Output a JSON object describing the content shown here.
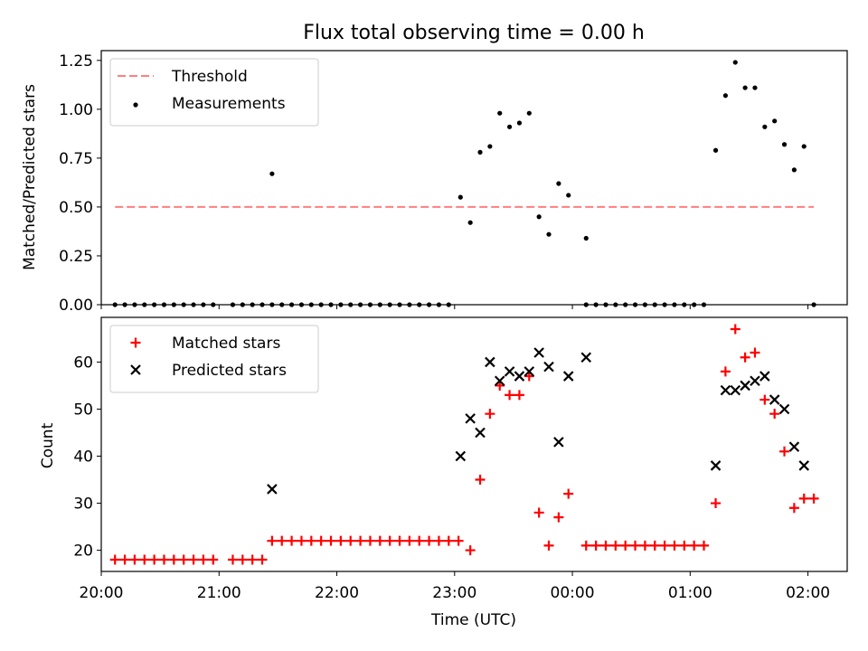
{
  "chart_data": [
    {
      "type": "scatter",
      "title": "Flux total observing time = 0.00 h",
      "xlabel": "",
      "ylabel": "Matched/Predicted stars",
      "xlim": [
        "20:00",
        "02:20"
      ],
      "ylim": [
        0,
        1.3
      ],
      "x_ticks": [
        "20:00",
        "21:00",
        "22:00",
        "23:00",
        "00:00",
        "01:00",
        "02:00"
      ],
      "y_ticks": [
        "0.00",
        "0.25",
        "0.50",
        "0.75",
        "1.00",
        "1.25"
      ],
      "legend_position": "top-left",
      "threshold": {
        "name": "Threshold",
        "value": 0.5,
        "x_range": [
          "20:07",
          "02:03"
        ],
        "style": "dashed",
        "color": "#ff7f7f"
      },
      "series": [
        {
          "name": "Measurements",
          "marker": "dot",
          "color": "#000000",
          "points": [
            [
              "20:07",
              0
            ],
            [
              "20:12",
              0
            ],
            [
              "20:17",
              0
            ],
            [
              "20:22",
              0
            ],
            [
              "20:27",
              0
            ],
            [
              "20:32",
              0
            ],
            [
              "20:37",
              0
            ],
            [
              "20:42",
              0
            ],
            [
              "20:47",
              0
            ],
            [
              "20:52",
              0
            ],
            [
              "20:57",
              0
            ],
            [
              "21:07",
              0
            ],
            [
              "21:12",
              0
            ],
            [
              "21:17",
              0
            ],
            [
              "21:22",
              0
            ],
            [
              "21:27",
              0
            ],
            [
              "21:27",
              0.67
            ],
            [
              "21:32",
              0
            ],
            [
              "21:37",
              0
            ],
            [
              "21:42",
              0
            ],
            [
              "21:47",
              0
            ],
            [
              "21:52",
              0
            ],
            [
              "21:57",
              0
            ],
            [
              "22:02",
              0
            ],
            [
              "22:07",
              0
            ],
            [
              "22:12",
              0
            ],
            [
              "22:17",
              0
            ],
            [
              "22:22",
              0
            ],
            [
              "22:27",
              0
            ],
            [
              "22:32",
              0
            ],
            [
              "22:37",
              0
            ],
            [
              "22:42",
              0
            ],
            [
              "22:47",
              0
            ],
            [
              "22:52",
              0
            ],
            [
              "22:57",
              0
            ],
            [
              "23:03",
              0.55
            ],
            [
              "23:08",
              0.42
            ],
            [
              "23:13",
              0.78
            ],
            [
              "23:18",
              0.81
            ],
            [
              "23:23",
              0.98
            ],
            [
              "23:28",
              0.91
            ],
            [
              "23:33",
              0.93
            ],
            [
              "23:38",
              0.98
            ],
            [
              "23:43",
              0.45
            ],
            [
              "23:48",
              0.36
            ],
            [
              "23:53",
              0.62
            ],
            [
              "23:58",
              0.56
            ],
            [
              "00:07",
              0.34
            ],
            [
              "00:07",
              0
            ],
            [
              "00:12",
              0
            ],
            [
              "00:17",
              0
            ],
            [
              "00:22",
              0
            ],
            [
              "00:27",
              0
            ],
            [
              "00:32",
              0
            ],
            [
              "00:37",
              0
            ],
            [
              "00:42",
              0
            ],
            [
              "00:47",
              0
            ],
            [
              "00:52",
              0
            ],
            [
              "00:57",
              0
            ],
            [
              "01:02",
              0
            ],
            [
              "01:07",
              0
            ],
            [
              "01:13",
              0.79
            ],
            [
              "01:18",
              1.07
            ],
            [
              "01:23",
              1.24
            ],
            [
              "01:28",
              1.11
            ],
            [
              "01:33",
              1.11
            ],
            [
              "01:38",
              0.91
            ],
            [
              "01:43",
              0.94
            ],
            [
              "01:48",
              0.82
            ],
            [
              "01:53",
              0.69
            ],
            [
              "01:58",
              0.81
            ],
            [
              "02:03",
              0
            ]
          ]
        }
      ]
    },
    {
      "type": "scatter",
      "title": "",
      "xlabel": "Time (UTC)",
      "ylabel": "Count",
      "xlim": [
        "20:00",
        "02:20"
      ],
      "ylim": [
        15.5,
        69.5
      ],
      "x_ticks": [
        "20:00",
        "21:00",
        "22:00",
        "23:00",
        "00:00",
        "01:00",
        "02:00"
      ],
      "y_ticks": [
        "20",
        "30",
        "40",
        "50",
        "60"
      ],
      "legend_position": "top-left",
      "series": [
        {
          "name": "Matched stars",
          "marker": "plus",
          "color": "#ff0000",
          "points": [
            [
              "20:07",
              18
            ],
            [
              "20:12",
              18
            ],
            [
              "20:17",
              18
            ],
            [
              "20:22",
              18
            ],
            [
              "20:27",
              18
            ],
            [
              "20:32",
              18
            ],
            [
              "20:37",
              18
            ],
            [
              "20:42",
              18
            ],
            [
              "20:47",
              18
            ],
            [
              "20:52",
              18
            ],
            [
              "20:57",
              18
            ],
            [
              "21:07",
              18
            ],
            [
              "21:12",
              18
            ],
            [
              "21:17",
              18
            ],
            [
              "21:22",
              18
            ],
            [
              "21:27",
              22
            ],
            [
              "21:32",
              22
            ],
            [
              "21:37",
              22
            ],
            [
              "21:42",
              22
            ],
            [
              "21:47",
              22
            ],
            [
              "21:52",
              22
            ],
            [
              "21:57",
              22
            ],
            [
              "22:02",
              22
            ],
            [
              "22:07",
              22
            ],
            [
              "22:12",
              22
            ],
            [
              "22:17",
              22
            ],
            [
              "22:22",
              22
            ],
            [
              "22:27",
              22
            ],
            [
              "22:32",
              22
            ],
            [
              "22:37",
              22
            ],
            [
              "22:42",
              22
            ],
            [
              "22:47",
              22
            ],
            [
              "22:52",
              22
            ],
            [
              "22:57",
              22
            ],
            [
              "23:02",
              22
            ],
            [
              "23:08",
              20
            ],
            [
              "23:13",
              35
            ],
            [
              "23:18",
              49
            ],
            [
              "23:23",
              55
            ],
            [
              "23:28",
              53
            ],
            [
              "23:33",
              53
            ],
            [
              "23:38",
              57
            ],
            [
              "23:43",
              28
            ],
            [
              "23:48",
              21
            ],
            [
              "23:53",
              27
            ],
            [
              "23:58",
              32
            ],
            [
              "00:07",
              21
            ],
            [
              "00:12",
              21
            ],
            [
              "00:17",
              21
            ],
            [
              "00:22",
              21
            ],
            [
              "00:27",
              21
            ],
            [
              "00:32",
              21
            ],
            [
              "00:37",
              21
            ],
            [
              "00:42",
              21
            ],
            [
              "00:47",
              21
            ],
            [
              "00:52",
              21
            ],
            [
              "00:57",
              21
            ],
            [
              "01:02",
              21
            ],
            [
              "01:07",
              21
            ],
            [
              "01:13",
              30
            ],
            [
              "01:18",
              58
            ],
            [
              "01:23",
              67
            ],
            [
              "01:28",
              61
            ],
            [
              "01:33",
              62
            ],
            [
              "01:38",
              52
            ],
            [
              "01:43",
              49
            ],
            [
              "01:48",
              41
            ],
            [
              "01:53",
              29
            ],
            [
              "01:58",
              31
            ],
            [
              "02:03",
              31
            ]
          ]
        },
        {
          "name": "Predicted stars",
          "marker": "x",
          "color": "#000000",
          "points": [
            [
              "21:27",
              33
            ],
            [
              "23:03",
              40
            ],
            [
              "23:08",
              48
            ],
            [
              "23:13",
              45
            ],
            [
              "23:18",
              60
            ],
            [
              "23:23",
              56
            ],
            [
              "23:28",
              58
            ],
            [
              "23:33",
              57
            ],
            [
              "23:38",
              58
            ],
            [
              "23:43",
              62
            ],
            [
              "23:48",
              59
            ],
            [
              "23:53",
              43
            ],
            [
              "23:58",
              57
            ],
            [
              "00:07",
              61
            ],
            [
              "01:13",
              38
            ],
            [
              "01:18",
              54
            ],
            [
              "01:23",
              54
            ],
            [
              "01:28",
              55
            ],
            [
              "01:33",
              56
            ],
            [
              "01:38",
              57
            ],
            [
              "01:43",
              52
            ],
            [
              "01:48",
              50
            ],
            [
              "01:53",
              42
            ],
            [
              "01:58",
              38
            ]
          ]
        }
      ]
    }
  ]
}
